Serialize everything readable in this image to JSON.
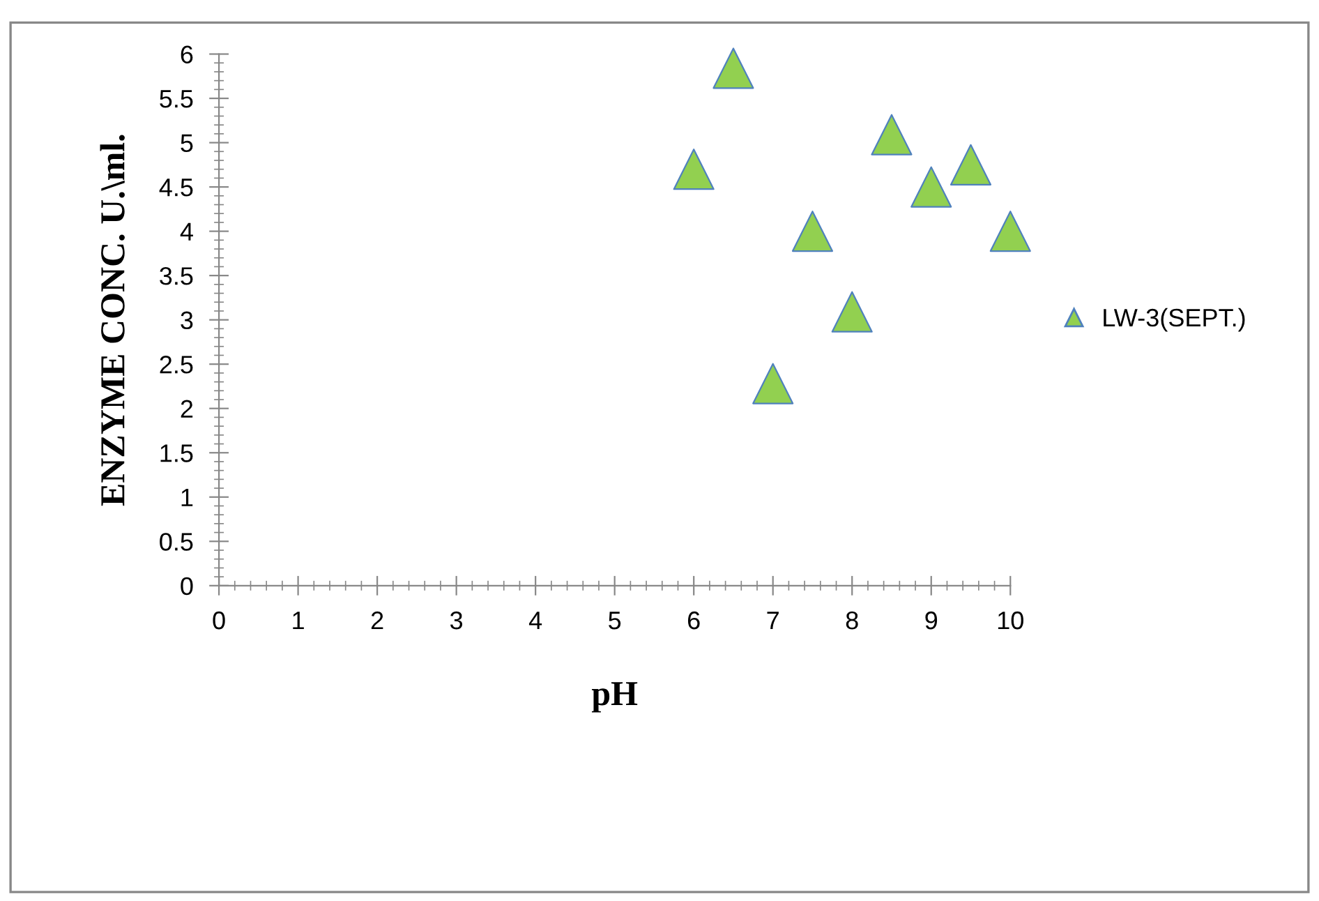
{
  "chart_data": {
    "type": "scatter",
    "xlabel": "pH",
    "ylabel": "ENZYME CONC. U.\\ml.",
    "series": [
      {
        "name": "LW-3(SEPT.)",
        "color": "#92d050",
        "x": [
          6,
          6.5,
          7,
          7.5,
          8,
          8.5,
          9,
          9.5,
          10
        ],
        "values": [
          4.7,
          5.84,
          2.28,
          4.0,
          3.09,
          5.09,
          4.5,
          4.75,
          4.0
        ]
      }
    ],
    "xlim": [
      0,
      10
    ],
    "xticks": [
      0,
      1,
      2,
      3,
      4,
      5,
      6,
      7,
      8,
      9,
      10
    ],
    "ylim": [
      0,
      6
    ],
    "yticks": [
      0,
      0.5,
      1,
      1.5,
      2,
      2.5,
      3,
      3.5,
      4,
      4.5,
      5,
      5.5,
      6
    ],
    "marker": "triangle",
    "grid": false,
    "legend": "right"
  }
}
